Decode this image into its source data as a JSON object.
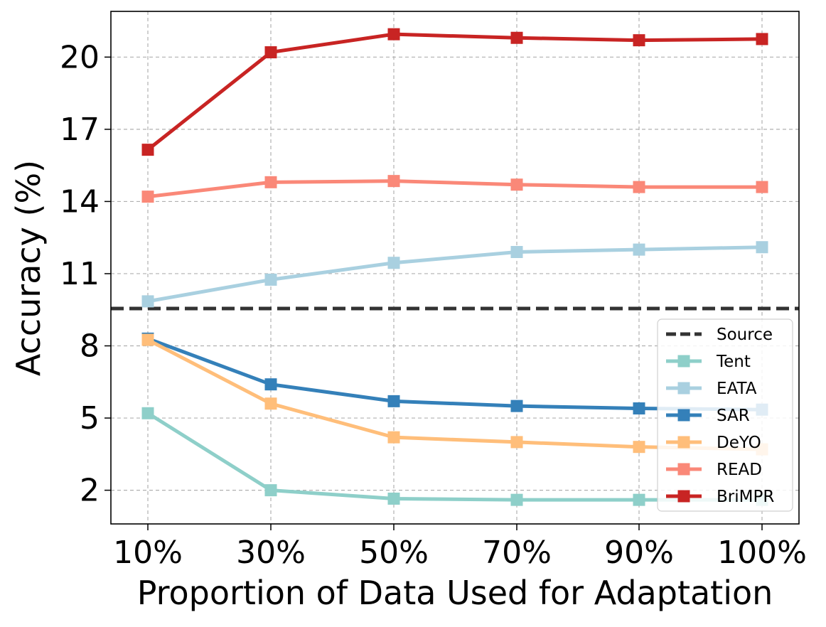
{
  "chart_data": {
    "type": "line",
    "title": "",
    "xlabel": "Proportion of Data Used for Adaptation",
    "ylabel": "Accuracy (%)",
    "categories": [
      "10%",
      "30%",
      "50%",
      "70%",
      "90%",
      "100%"
    ],
    "ylim": [
      0.6,
      21.9
    ],
    "yticks": [
      2,
      5,
      8,
      11,
      14,
      17,
      20
    ],
    "grid": true,
    "legend_position": "lower-right",
    "source": {
      "name": "Source",
      "value": 9.55,
      "color": "#333333",
      "style": "dashed"
    },
    "series": [
      {
        "name": "Tent",
        "color": "#8ecfc9",
        "values": [
          5.2,
          2.0,
          1.65,
          1.6,
          1.6,
          1.6
        ]
      },
      {
        "name": "EATA",
        "color": "#a9d0e0",
        "values": [
          9.85,
          10.75,
          11.45,
          11.9,
          12.0,
          12.1
        ]
      },
      {
        "name": "SAR",
        "color": "#3480b9",
        "values": [
          8.3,
          6.4,
          5.7,
          5.5,
          5.4,
          5.35
        ]
      },
      {
        "name": "DeYO",
        "color": "#ffbe7a",
        "values": [
          8.25,
          5.6,
          4.2,
          4.0,
          3.8,
          3.7
        ]
      },
      {
        "name": "READ",
        "color": "#fa8878",
        "values": [
          14.2,
          14.8,
          14.85,
          14.7,
          14.6,
          14.6
        ]
      },
      {
        "name": "BriMPR",
        "color": "#c82423",
        "values": [
          16.15,
          20.2,
          20.95,
          20.8,
          20.7,
          20.75
        ]
      }
    ]
  }
}
